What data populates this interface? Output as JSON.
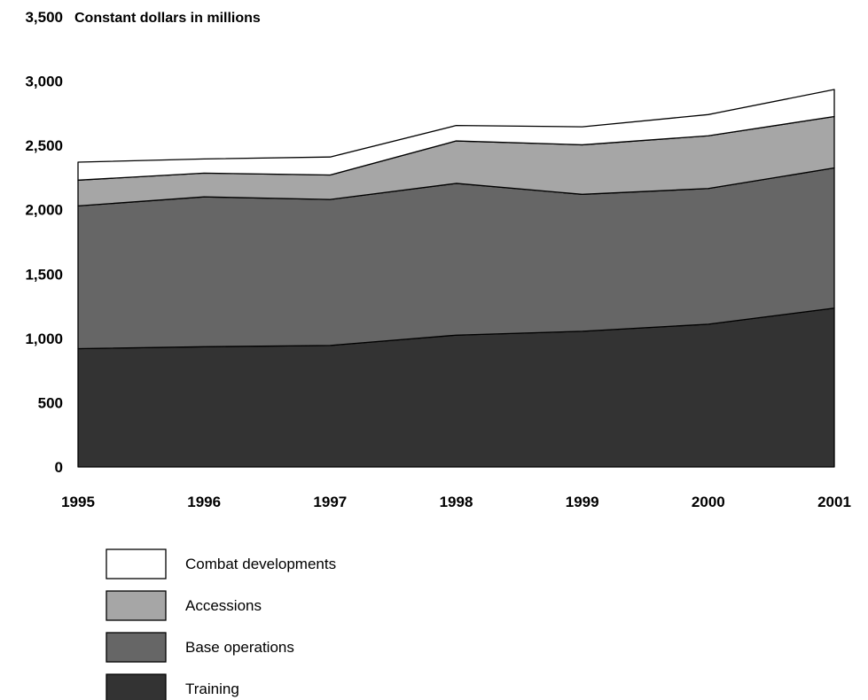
{
  "chart_data": {
    "type": "area",
    "stacked": true,
    "title": "Constant dollars in millions",
    "xlabel": "",
    "ylabel": "",
    "x": [
      "1995",
      "1996",
      "1997",
      "1998",
      "1999",
      "2000",
      "2001"
    ],
    "ylim": [
      0,
      3500
    ],
    "yticks": [
      "0",
      "500",
      "1,000",
      "1,500",
      "2,000",
      "2,500",
      "3,000",
      "3,500"
    ],
    "grid": false,
    "legend_position": "bottom-left",
    "series": [
      {
        "name": "Training",
        "color": "#333333",
        "values": [
          920,
          935,
          945,
          1025,
          1055,
          1110,
          1235
        ]
      },
      {
        "name": "Base operations",
        "color": "#666666",
        "values": [
          1110,
          1165,
          1135,
          1180,
          1065,
          1055,
          1090
        ]
      },
      {
        "name": "Accessions",
        "color": "#a6a6a6",
        "values": [
          200,
          185,
          190,
          330,
          385,
          410,
          400
        ]
      },
      {
        "name": "Combat developments",
        "color": "#ffffff",
        "values": [
          140,
          110,
          140,
          120,
          140,
          165,
          210
        ]
      }
    ]
  }
}
